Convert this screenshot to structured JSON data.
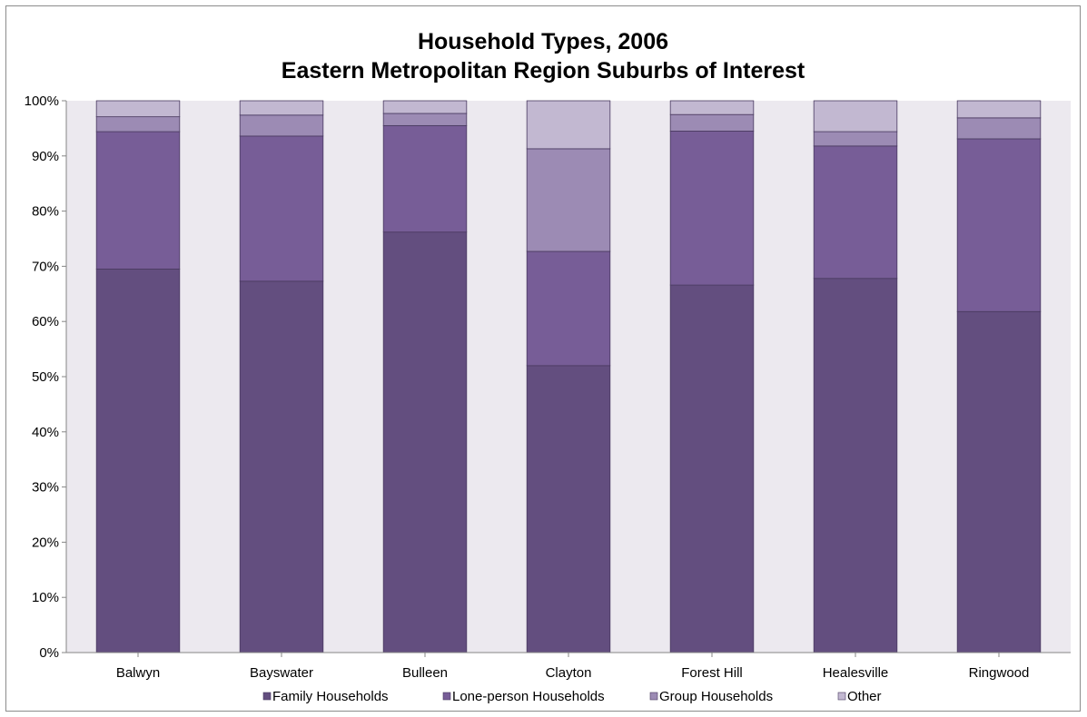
{
  "chart_data": {
    "type": "bar",
    "stacked": true,
    "percent": true,
    "title": "Household Types, 2006",
    "subtitle": "Eastern Metropolitan Region Suburbs of Interest",
    "xlabel": "",
    "ylabel": "",
    "ylim": [
      0,
      100
    ],
    "yticks": [
      "0%",
      "10%",
      "20%",
      "30%",
      "40%",
      "50%",
      "60%",
      "70%",
      "80%",
      "90%",
      "100%"
    ],
    "categories": [
      "Balwyn",
      "Bayswater",
      "Bulleen",
      "Clayton",
      "Forest Hill",
      "Healesville",
      "Ringwood"
    ],
    "series": [
      {
        "name": "Family Households",
        "color": "#634e7f",
        "values": [
          69.5,
          67.3,
          76.2,
          52.0,
          66.6,
          67.8,
          61.8
        ]
      },
      {
        "name": "Lone-person Households",
        "color": "#775d97",
        "values": [
          24.9,
          26.3,
          19.3,
          20.7,
          27.9,
          24.0,
          31.3
        ]
      },
      {
        "name": "Group Households",
        "color": "#9c8bb4",
        "values": [
          2.7,
          3.8,
          2.2,
          18.6,
          3.0,
          2.6,
          3.8
        ]
      },
      {
        "name": "Other",
        "color": "#c2b8d1",
        "values": [
          2.9,
          2.6,
          2.3,
          8.7,
          2.5,
          5.6,
          3.1
        ]
      }
    ],
    "plot_background": "#ece9ef",
    "grid": false,
    "legend_position": "bottom"
  }
}
